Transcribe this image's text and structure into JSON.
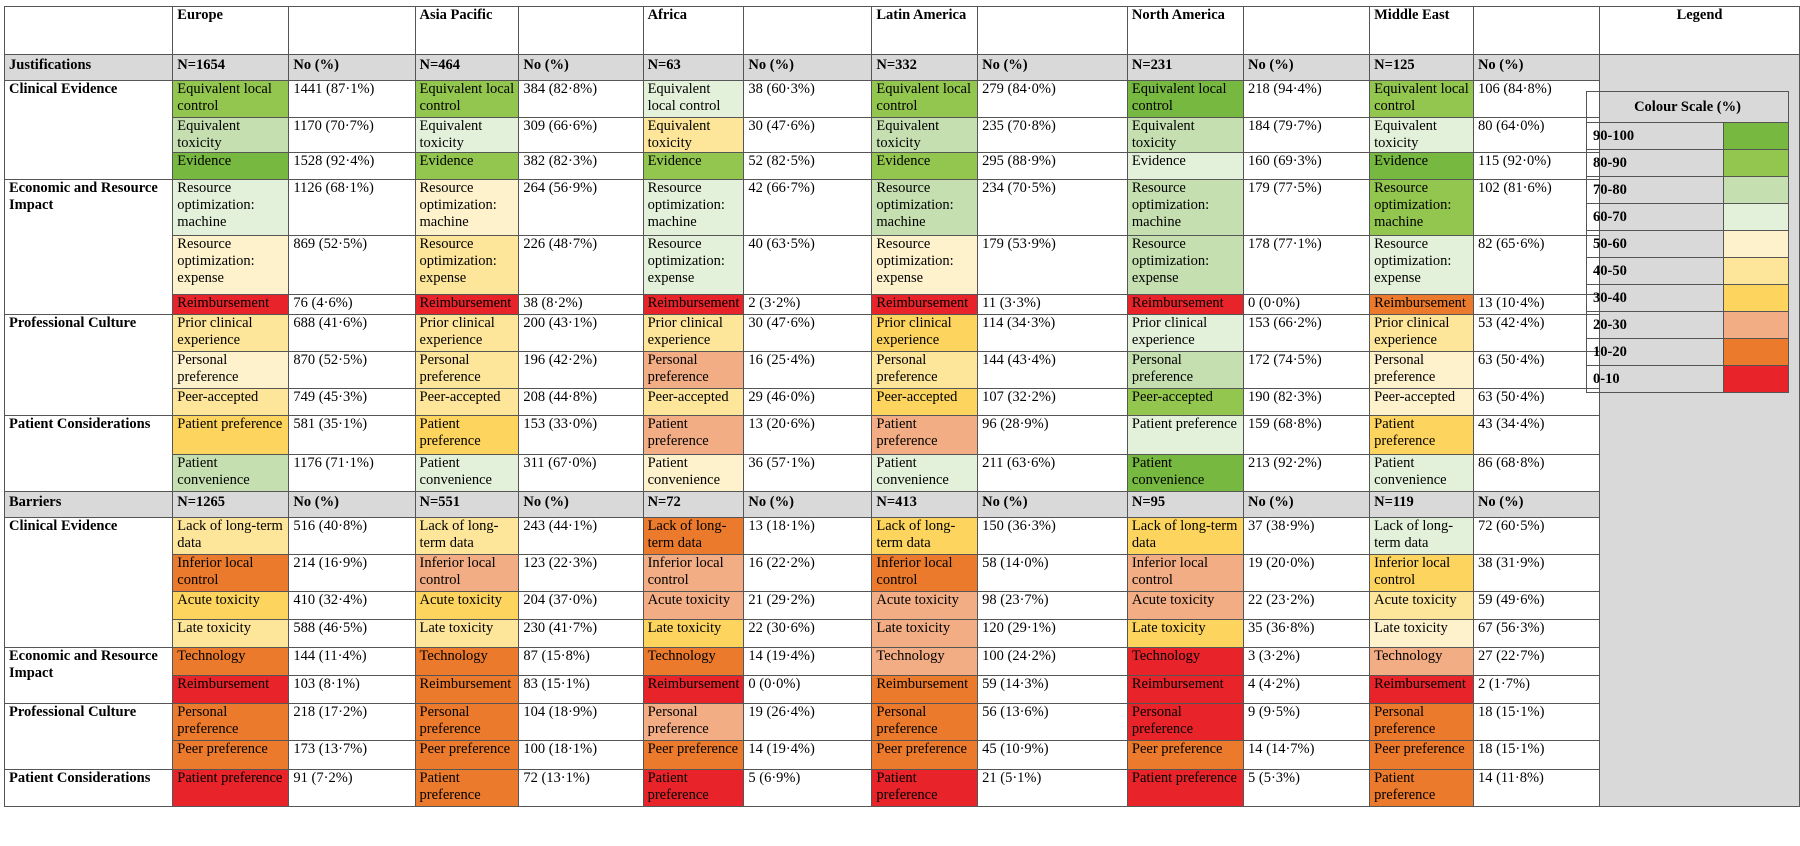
{
  "regions": [
    {
      "name": "Europe",
      "just_n": "N=1654",
      "bar_n": "N=1265"
    },
    {
      "name": "Asia Pacific",
      "just_n": "N=464",
      "bar_n": "N=551"
    },
    {
      "name": "Africa",
      "just_n": "N=63",
      "bar_n": "N=72"
    },
    {
      "name": "Latin America",
      "just_n": "N=332",
      "bar_n": "N=413"
    },
    {
      "name": "North America",
      "just_n": "N=231",
      "bar_n": "N=95"
    },
    {
      "name": "Middle East",
      "just_n": "N=125",
      "bar_n": "N=119"
    }
  ],
  "no_pct_label": "No (%)",
  "legend_title": "Legend",
  "colour_scale_title": "Colour Scale (%)",
  "colour_scale": [
    {
      "range": "90-100",
      "color": "#76b840"
    },
    {
      "range": "80-90",
      "color": "#93c64f"
    },
    {
      "range": "70-80",
      "color": "#c5dfb0"
    },
    {
      "range": "60-70",
      "color": "#e3f0da"
    },
    {
      "range": "50-60",
      "color": "#fef2cc"
    },
    {
      "range": "40-50",
      "color": "#fde59a"
    },
    {
      "range": "30-40",
      "color": "#fdd55e"
    },
    {
      "range": "20-30",
      "color": "#f3ad84"
    },
    {
      "range": "10-20",
      "color": "#ec7a2c"
    },
    {
      "range": "0-10",
      "color": "#e8232a"
    }
  ],
  "sections": [
    {
      "title": "Justifications",
      "n_key": "just_n",
      "categories": [
        {
          "name": "Clinical Evidence",
          "rows": [
            {
              "cells": [
                [
                  "Equivalent local control",
                  "1441 (87·1%)"
                ],
                [
                  "Equivalent local control",
                  "384 (82·8%)"
                ],
                [
                  "Equivalent local control",
                  "38 (60·3%)"
                ],
                [
                  "Equivalent local control",
                  "279 (84·0%)"
                ],
                [
                  "Equivalent local control",
                  "218 (94·4%)"
                ],
                [
                  "Equivalent local control",
                  "106 (84·8%)"
                ]
              ]
            },
            {
              "cells": [
                [
                  "Equivalent toxicity",
                  "1170 (70·7%)"
                ],
                [
                  "Equivalent toxicity",
                  "309 (66·6%)"
                ],
                [
                  "Equivalent toxicity",
                  "30 (47·6%)"
                ],
                [
                  "Equivalent toxicity",
                  "235 (70·8%)"
                ],
                [
                  "Equivalent toxicity",
                  "184 (79·7%)"
                ],
                [
                  "Equivalent toxicity",
                  "80 (64·0%)"
                ]
              ]
            },
            {
              "cells": [
                [
                  "Evidence",
                  "1528 (92·4%)"
                ],
                [
                  "Evidence",
                  "382 (82·3%)"
                ],
                [
                  "Evidence",
                  "52 (82·5%)"
                ],
                [
                  "Evidence",
                  "295 (88·9%)"
                ],
                [
                  "Evidence",
                  "160 (69·3%)"
                ],
                [
                  "Evidence",
                  "115 (92·0%)"
                ]
              ]
            }
          ]
        },
        {
          "name": "Economic and Resource Impact",
          "rows": [
            {
              "cells": [
                [
                  "Resource optimization: machine",
                  "1126 (68·1%)"
                ],
                [
                  "Resource optimization: machine",
                  "264 (56·9%)"
                ],
                [
                  "Resource optimization: machine",
                  "42 (66·7%)"
                ],
                [
                  "Resource optimization: machine",
                  "234 (70·5%)"
                ],
                [
                  "Resource optimization: machine",
                  "179 (77·5%)"
                ],
                [
                  "Resource optimization: machine",
                  "102 (81·6%)"
                ]
              ]
            },
            {
              "cells": [
                [
                  "Resource optimization: expense",
                  "869 (52·5%)"
                ],
                [
                  "Resource optimization: expense",
                  "226 (48·7%)"
                ],
                [
                  "Resource optimization: expense",
                  "40 (63·5%)"
                ],
                [
                  "Resource optimization: expense",
                  "179 (53·9%)"
                ],
                [
                  "Resource optimization: expense",
                  "178 (77·1%)"
                ],
                [
                  "Resource optimization: expense",
                  "82 (65·6%)"
                ]
              ]
            },
            {
              "cells": [
                [
                  "Reimbursement",
                  "76 (4·6%)"
                ],
                [
                  "Reimbursement",
                  "38 (8·2%)"
                ],
                [
                  "Reimbursement",
                  "2 (3·2%)"
                ],
                [
                  "Reimbursement",
                  "11 (3·3%)"
                ],
                [
                  "Reimbursement",
                  "0 (0·0%)"
                ],
                [
                  "Reimbursement",
                  "13 (10·4%)"
                ]
              ]
            }
          ]
        },
        {
          "name": "Professional Culture",
          "rows": [
            {
              "cells": [
                [
                  "Prior clinical experience",
                  "688 (41·6%)"
                ],
                [
                  "Prior clinical experience",
                  "200 (43·1%)"
                ],
                [
                  "Prior clinical experience",
                  "30 (47·6%)"
                ],
                [
                  "Prior clinical experience",
                  "114 (34·3%)"
                ],
                [
                  "Prior clinical experience",
                  "153 (66·2%)"
                ],
                [
                  "Prior clinical experience",
                  "53 (42·4%)"
                ]
              ]
            },
            {
              "cells": [
                [
                  "Personal preference",
                  "870 (52·5%)"
                ],
                [
                  "Personal preference",
                  "196 (42·2%)"
                ],
                [
                  "Personal preference",
                  "16 (25·4%)"
                ],
                [
                  "Personal preference",
                  "144 (43·4%)"
                ],
                [
                  "Personal preference",
                  "172 (74·5%)"
                ],
                [
                  "Personal preference",
                  "63 (50·4%)"
                ]
              ]
            },
            {
              "cells": [
                [
                  "Peer-accepted",
                  "749 (45·3%)"
                ],
                [
                  "Peer-accepted",
                  "208 (44·8%)"
                ],
                [
                  "Peer-accepted",
                  "29 (46·0%)"
                ],
                [
                  "Peer-accepted",
                  "107 (32·2%)"
                ],
                [
                  "Peer-accepted",
                  "190 (82·3%)"
                ],
                [
                  "Peer-accepted",
                  "63 (50·4%)"
                ]
              ]
            }
          ]
        },
        {
          "name": "Patient Considerations",
          "rows": [
            {
              "cells": [
                [
                  "Patient preference",
                  "581 (35·1%)"
                ],
                [
                  "Patient preference",
                  "153 (33·0%)"
                ],
                [
                  "Patient preference",
                  "13 (20·6%)"
                ],
                [
                  "Patient preference",
                  "96 (28·9%)"
                ],
                [
                  "Patient preference",
                  "159 (68·8%)"
                ],
                [
                  "Patient preference",
                  "43 (34·4%)"
                ]
              ]
            },
            {
              "cells": [
                [
                  "Patient convenience",
                  "1176 (71·1%)"
                ],
                [
                  "Patient convenience",
                  "311 (67·0%)"
                ],
                [
                  "Patient convenience",
                  "36 (57·1%)"
                ],
                [
                  "Patient convenience",
                  "211 (63·6%)"
                ],
                [
                  "Patient convenience",
                  "213 (92·2%)"
                ],
                [
                  "Patient convenience",
                  "86 (68·8%)"
                ]
              ]
            }
          ]
        }
      ]
    },
    {
      "title": "Barriers",
      "n_key": "bar_n",
      "categories": [
        {
          "name": "Clinical Evidence",
          "rows": [
            {
              "cells": [
                [
                  "Lack of long-term data",
                  "516 (40·8%)"
                ],
                [
                  "Lack of long-term data",
                  "243 (44·1%)"
                ],
                [
                  "Lack of long-term data",
                  "13 (18·1%)"
                ],
                [
                  "Lack of long-term data",
                  "150 (36·3%)"
                ],
                [
                  "Lack of long-term data",
                  "37 (38·9%)"
                ],
                [
                  "Lack of long-term data",
                  "72 (60·5%)"
                ]
              ]
            },
            {
              "cells": [
                [
                  "Inferior local control",
                  "214 (16·9%)"
                ],
                [
                  "Inferior local control",
                  "123 (22·3%)"
                ],
                [
                  "Inferior local control",
                  "16 (22·2%)"
                ],
                [
                  "Inferior local control",
                  "58 (14·0%)"
                ],
                [
                  "Inferior local control",
                  "19 (20·0%)"
                ],
                [
                  "Inferior local control",
                  "38 (31·9%)"
                ]
              ]
            },
            {
              "cells": [
                [
                  "Acute toxicity",
                  "410 (32·4%)"
                ],
                [
                  "Acute toxicity",
                  "204 (37·0%)"
                ],
                [
                  "Acute toxicity",
                  "21 (29·2%)"
                ],
                [
                  "Acute toxicity",
                  "98 (23·7%)"
                ],
                [
                  "Acute toxicity",
                  "22 (23·2%)"
                ],
                [
                  "Acute toxicity",
                  "59 (49·6%)"
                ]
              ]
            },
            {
              "cells": [
                [
                  "Late toxicity",
                  "588 (46·5%)"
                ],
                [
                  "Late toxicity",
                  "230 (41·7%)"
                ],
                [
                  "Late toxicity",
                  "22 (30·6%)"
                ],
                [
                  "Late toxicity",
                  "120 (29·1%)"
                ],
                [
                  "Late toxicity",
                  "35 (36·8%)"
                ],
                [
                  "Late toxicity",
                  "67 (56·3%)"
                ]
              ]
            }
          ]
        },
        {
          "name": "Economic and Resource Impact",
          "rows": [
            {
              "cells": [
                [
                  "Technology",
                  "144 (11·4%)"
                ],
                [
                  "Technology",
                  "87 (15·8%)"
                ],
                [
                  "Technology",
                  "14 (19·4%)"
                ],
                [
                  "Technology",
                  "100 (24·2%)"
                ],
                [
                  "Technology",
                  "3 (3·2%)"
                ],
                [
                  "Technology",
                  "27 (22·7%)"
                ]
              ]
            },
            {
              "cells": [
                [
                  "Reimbursement",
                  "103 (8·1%)"
                ],
                [
                  "Reimbursement",
                  "83 (15·1%)"
                ],
                [
                  "Reimbursement",
                  "0 (0·0%)"
                ],
                [
                  "Reimbursement",
                  "59 (14·3%)"
                ],
                [
                  "Reimbursement",
                  "4 (4·2%)"
                ],
                [
                  "Reimbursement",
                  "2 (1·7%)"
                ]
              ]
            }
          ]
        },
        {
          "name": "Professional Culture",
          "rows": [
            {
              "cells": [
                [
                  "Personal preference",
                  "218 (17·2%)"
                ],
                [
                  "Personal preference",
                  "104 (18·9%)"
                ],
                [
                  "Personal preference",
                  "19 (26·4%)"
                ],
                [
                  "Personal preference",
                  "56 (13·6%)"
                ],
                [
                  "Personal preference",
                  "9 (9·5%)"
                ],
                [
                  "Personal preference",
                  "18 (15·1%)"
                ]
              ]
            },
            {
              "cells": [
                [
                  "Peer preference",
                  "173 (13·7%)"
                ],
                [
                  "Peer preference",
                  "100 (18·1%)"
                ],
                [
                  "Peer preference",
                  "14 (19·4%)"
                ],
                [
                  "Peer preference",
                  "45 (10·9%)"
                ],
                [
                  "Peer preference",
                  "14 (14·7%)"
                ],
                [
                  "Peer preference",
                  "18 (15·1%)"
                ]
              ]
            }
          ]
        },
        {
          "name": "Patient Considerations",
          "rows": [
            {
              "cells": [
                [
                  "Patient preference",
                  "91 (7·2%)"
                ],
                [
                  "Patient preference",
                  "72 (13·1%)"
                ],
                [
                  "Patient preference",
                  "5 (6·9%)"
                ],
                [
                  "Patient preference",
                  "21 (5·1%)"
                ],
                [
                  "Patient preference",
                  "5 (5·3%)"
                ],
                [
                  "Patient preference",
                  "14 (11·8%)"
                ]
              ]
            }
          ]
        }
      ]
    }
  ]
}
